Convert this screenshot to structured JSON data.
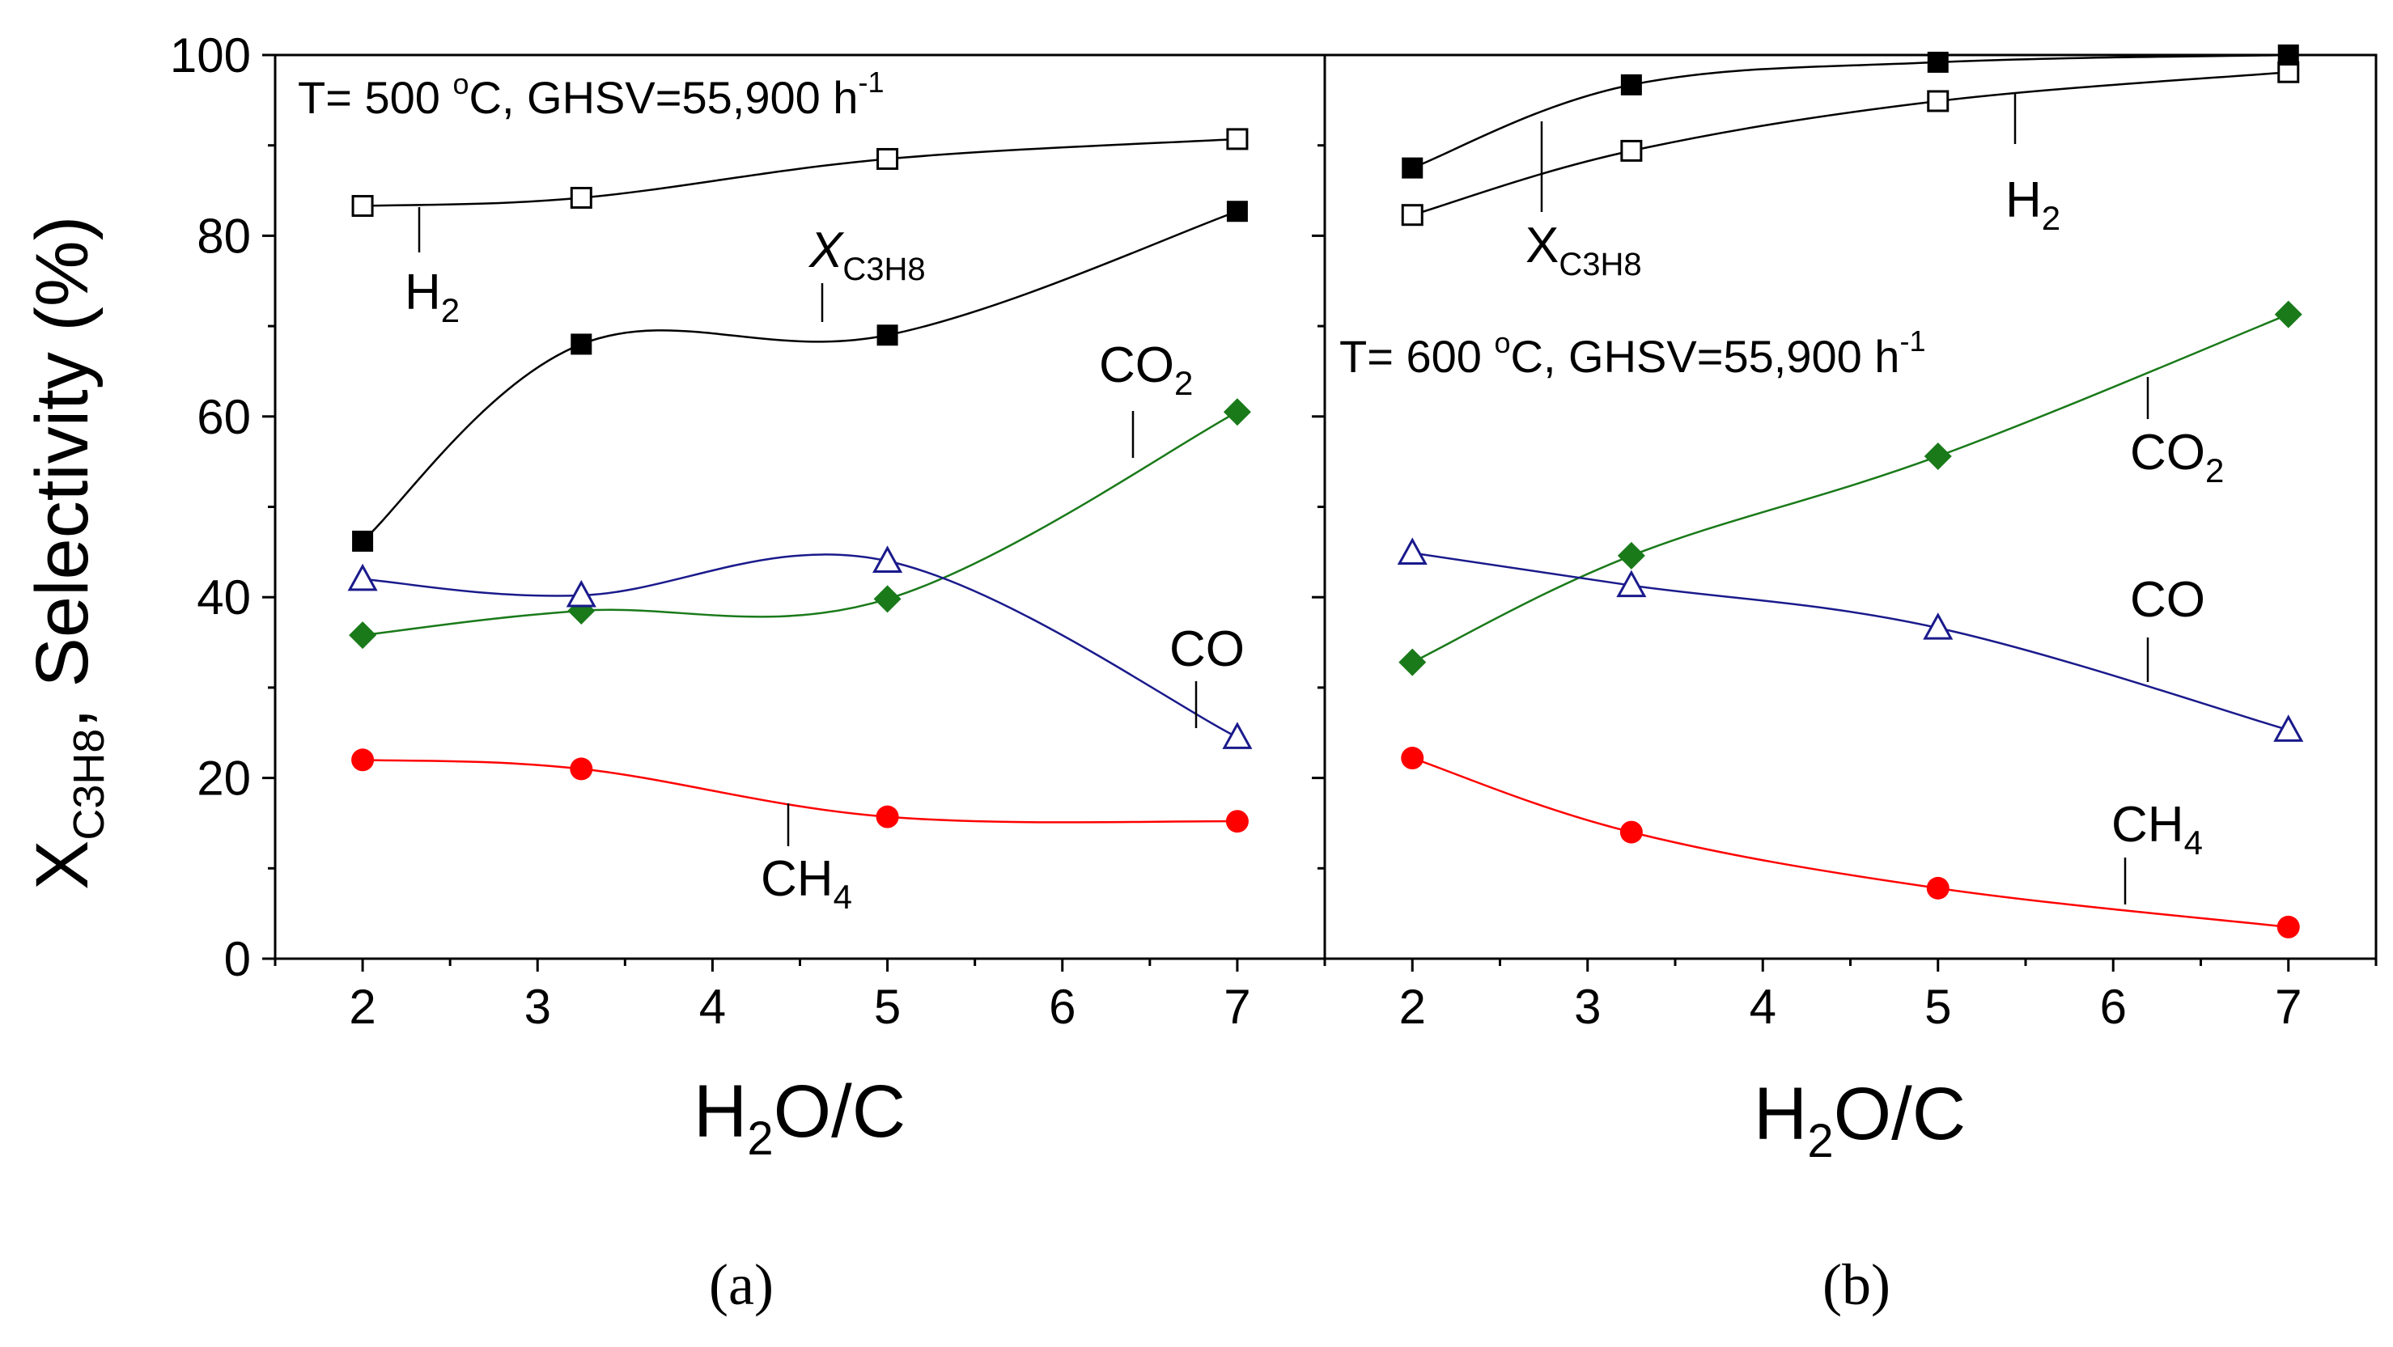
{
  "chart_data": [
    {
      "type": "line",
      "panel": "a",
      "panel_label": "(a)",
      "condition": {
        "prefix": "T= 500 ",
        "temp_sup": "o",
        "rest": "C,  GHSV=55,900 h",
        "ghsv_sup": "-1"
      },
      "xlabel": {
        "main": "H",
        "sub": "2",
        "rest": "O/C"
      },
      "xlim": [
        1.5,
        7.5
      ],
      "ylim": [
        0,
        100
      ],
      "xticks": [
        2,
        3,
        4,
        5,
        6,
        7
      ],
      "yticks": [
        0,
        20,
        40,
        60,
        80,
        100
      ],
      "series": [
        {
          "name": "H2",
          "label": {
            "main": "H",
            "sub": "2"
          },
          "color": "#000000",
          "marker": "square-open",
          "x": [
            2,
            3.25,
            5,
            7
          ],
          "y": [
            83.3,
            84.2,
            88.5,
            90.7
          ]
        },
        {
          "name": "XC3H8",
          "label": {
            "main": "X",
            "sub": "C3H8",
            "italic": true
          },
          "color": "#000000",
          "marker": "square-filled",
          "x": [
            2,
            3.25,
            5,
            7
          ],
          "y": [
            46.2,
            68.0,
            69.0,
            82.7
          ]
        },
        {
          "name": "CO2",
          "label": {
            "main": "CO",
            "sub": "2"
          },
          "color": "#1a7a1a",
          "marker": "diamond-filled",
          "x": [
            2,
            3.25,
            5,
            7
          ],
          "y": [
            35.8,
            38.5,
            39.8,
            60.5
          ]
        },
        {
          "name": "CO",
          "label": {
            "main": "CO",
            "sub": ""
          },
          "color": "#1a1a8c",
          "marker": "triangle-open",
          "x": [
            2,
            3.25,
            5,
            7
          ],
          "y": [
            42.0,
            40.2,
            44.0,
            24.5
          ]
        },
        {
          "name": "CH4",
          "label": {
            "main": "CH",
            "sub": "4"
          },
          "color": "#ff0000",
          "marker": "circle-filled",
          "x": [
            2,
            3.25,
            5,
            7
          ],
          "y": [
            22.0,
            21.0,
            15.7,
            15.2
          ]
        }
      ]
    },
    {
      "type": "line",
      "panel": "b",
      "panel_label": "(b)",
      "condition": {
        "prefix": "T= 600 ",
        "temp_sup": "o",
        "rest": "C, GHSV=55,900 h",
        "ghsv_sup": "-1"
      },
      "xlabel": {
        "main": "H",
        "sub": "2",
        "rest": "O/C"
      },
      "xlim": [
        1.5,
        7.5
      ],
      "ylim": [
        0,
        100
      ],
      "xticks": [
        2,
        3,
        4,
        5,
        6,
        7
      ],
      "yticks": [
        0,
        20,
        40,
        60,
        80,
        100
      ],
      "series": [
        {
          "name": "H2",
          "label": {
            "main": "H",
            "sub": "2"
          },
          "color": "#000000",
          "marker": "square-open",
          "x": [
            2,
            3.25,
            5,
            7
          ],
          "y": [
            82.3,
            89.4,
            94.9,
            98.1
          ]
        },
        {
          "name": "XC3H8",
          "label": {
            "main": "X",
            "sub": "C3H8",
            "italic": false
          },
          "color": "#000000",
          "marker": "square-filled",
          "x": [
            2,
            3.25,
            5,
            7
          ],
          "y": [
            87.5,
            96.7,
            99.2,
            100
          ]
        },
        {
          "name": "CO2",
          "label": {
            "main": "CO",
            "sub": "2"
          },
          "color": "#1a7a1a",
          "marker": "diamond-filled",
          "x": [
            2,
            3.25,
            5,
            7
          ],
          "y": [
            32.8,
            44.6,
            55.6,
            71.3
          ]
        },
        {
          "name": "CO",
          "label": {
            "main": "CO",
            "sub": ""
          },
          "color": "#1a1a8c",
          "marker": "triangle-open",
          "x": [
            2,
            3.25,
            5,
            7
          ],
          "y": [
            44.9,
            41.3,
            36.6,
            25.3
          ]
        },
        {
          "name": "CH4",
          "label": {
            "main": "CH",
            "sub": "4"
          },
          "color": "#ff0000",
          "marker": "circle-filled",
          "x": [
            2,
            3.25,
            5,
            7
          ],
          "y": [
            22.2,
            14.0,
            7.8,
            3.5
          ]
        }
      ]
    }
  ],
  "ylabel": {
    "main": "X",
    "sub": "C3H8",
    "rest": ", Selectivity (%)"
  }
}
